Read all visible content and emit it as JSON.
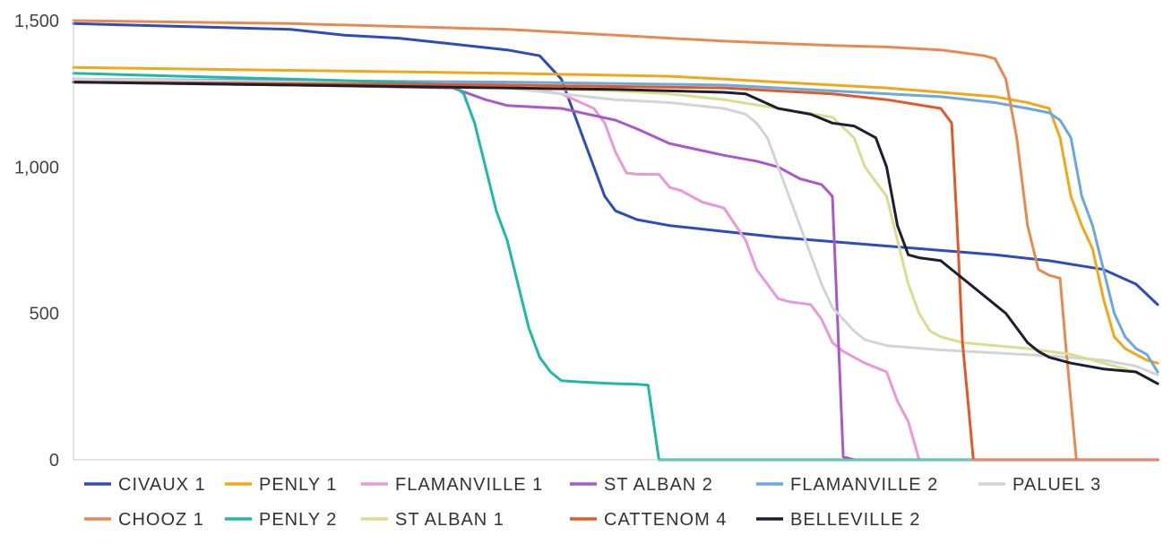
{
  "chart_data": {
    "type": "line",
    "title": "",
    "xlabel": "",
    "ylabel": "",
    "ylim": [
      0,
      1500
    ],
    "xlim": [
      0,
      100
    ],
    "y_ticks": [
      0,
      500,
      1000,
      1500
    ],
    "y_tick_labels": [
      "0",
      "500",
      "1,000",
      "1,500"
    ],
    "grid": false,
    "legend_position": "bottom",
    "series": [
      {
        "name": "CIVAUX 1",
        "color": "#2E4DB8",
        "x": [
          0,
          10,
          20,
          25,
          30,
          35,
          40,
          43,
          45,
          46,
          47,
          48,
          49,
          50,
          52,
          55,
          60,
          65,
          70,
          75,
          80,
          85,
          90,
          95,
          98,
          100
        ],
        "y": [
          1490,
          1480,
          1470,
          1450,
          1440,
          1420,
          1400,
          1380,
          1300,
          1200,
          1100,
          1000,
          900,
          850,
          820,
          800,
          780,
          760,
          745,
          730,
          715,
          700,
          680,
          650,
          600,
          530
        ]
      },
      {
        "name": "PENLY 1",
        "color": "#F0A818",
        "x": [
          0,
          20,
          40,
          55,
          60,
          65,
          70,
          75,
          80,
          85,
          88,
          90,
          91,
          92,
          93,
          94,
          95,
          96,
          97,
          98,
          99,
          100
        ],
        "y": [
          1340,
          1330,
          1320,
          1310,
          1300,
          1290,
          1280,
          1270,
          1255,
          1240,
          1220,
          1200,
          1100,
          900,
          800,
          720,
          550,
          420,
          380,
          360,
          340,
          330
        ]
      },
      {
        "name": "FLAMANVILLE 1",
        "color": "#E89AD8",
        "x": [
          0,
          30,
          40,
          45,
          48,
          49,
          50,
          51,
          52,
          54,
          55,
          56,
          58,
          60,
          62,
          63,
          64,
          65,
          66,
          67,
          68,
          69,
          70,
          71,
          72,
          73,
          75,
          76,
          77,
          78
        ],
        "y": [
          1300,
          1290,
          1280,
          1250,
          1200,
          1150,
          1050,
          980,
          975,
          975,
          930,
          920,
          880,
          860,
          750,
          650,
          600,
          550,
          540,
          535,
          530,
          480,
          400,
          370,
          350,
          330,
          300,
          200,
          130,
          0
        ]
      },
      {
        "name": "ST ALBAN 2",
        "color": "#A85AC8",
        "x": [
          0,
          20,
          35,
          38,
          40,
          45,
          50,
          52,
          55,
          60,
          63,
          65,
          66,
          67,
          68,
          69,
          70,
          71,
          72,
          73,
          74,
          75,
          78,
          80,
          100
        ],
        "y": [
          1290,
          1280,
          1270,
          1230,
          1210,
          1200,
          1160,
          1130,
          1080,
          1040,
          1020,
          1000,
          980,
          960,
          950,
          940,
          900,
          10,
          0,
          0,
          0,
          0,
          0,
          0,
          0
        ]
      },
      {
        "name": "FLAMANVILLE 2",
        "color": "#6AA8E0",
        "x": [
          0,
          20,
          40,
          60,
          70,
          80,
          85,
          88,
          90,
          91,
          92,
          93,
          94,
          95,
          96,
          97,
          98,
          99,
          100
        ],
        "y": [
          1300,
          1295,
          1290,
          1280,
          1260,
          1240,
          1220,
          1200,
          1185,
          1160,
          1100,
          900,
          800,
          650,
          500,
          420,
          380,
          360,
          300
        ]
      },
      {
        "name": "PALUEL 3",
        "color": "#D4D4D8",
        "x": [
          0,
          20,
          35,
          40,
          45,
          50,
          55,
          60,
          62,
          63,
          64,
          65,
          66,
          67,
          68,
          69,
          70,
          71,
          72,
          73,
          75,
          80,
          85,
          90,
          95,
          98,
          100
        ],
        "y": [
          1300,
          1290,
          1280,
          1270,
          1250,
          1230,
          1220,
          1200,
          1180,
          1150,
          1100,
          1000,
          900,
          800,
          700,
          600,
          520,
          480,
          440,
          410,
          390,
          375,
          365,
          355,
          340,
          320,
          290
        ]
      },
      {
        "name": "CHOOZ 1",
        "color": "#E88A50",
        "x": [
          0,
          10,
          20,
          30,
          40,
          50,
          60,
          70,
          75,
          80,
          82,
          84,
          85,
          86,
          87,
          88,
          89,
          90,
          91,
          91.5,
          92,
          92.5,
          93,
          95,
          100
        ],
        "y": [
          1500,
          1495,
          1490,
          1480,
          1470,
          1450,
          1430,
          1415,
          1410,
          1400,
          1390,
          1380,
          1370,
          1300,
          1100,
          800,
          650,
          630,
          620,
          400,
          200,
          0,
          0,
          0,
          0
        ]
      },
      {
        "name": "PENLY 2",
        "color": "#20B8A8",
        "x": [
          0,
          10,
          20,
          30,
          35,
          36,
          37,
          38,
          39,
          40,
          41,
          42,
          43,
          44,
          45,
          47,
          50,
          52,
          53,
          54,
          55,
          60,
          100
        ],
        "y": [
          1320,
          1310,
          1300,
          1290,
          1280,
          1250,
          1150,
          1000,
          850,
          750,
          600,
          450,
          350,
          300,
          270,
          265,
          260,
          258,
          255,
          0,
          0,
          0,
          0
        ]
      },
      {
        "name": "ST ALBAN 1",
        "color": "#DCDC90",
        "x": [
          0,
          20,
          40,
          50,
          55,
          60,
          65,
          70,
          72,
          73,
          74,
          75,
          76,
          77,
          78,
          79,
          80,
          82,
          85,
          88,
          90,
          92,
          95,
          98,
          100
        ],
        "y": [
          1290,
          1280,
          1270,
          1260,
          1250,
          1230,
          1200,
          1170,
          1100,
          1000,
          950,
          900,
          750,
          600,
          500,
          440,
          420,
          400,
          390,
          380,
          370,
          360,
          330,
          300,
          260
        ]
      },
      {
        "name": "CATTENOM 4",
        "color": "#E05A28",
        "x": [
          0,
          20,
          40,
          60,
          70,
          75,
          80,
          81,
          81.5,
          82,
          82.5,
          83,
          85,
          90,
          95,
          100
        ],
        "y": [
          1290,
          1285,
          1280,
          1270,
          1250,
          1230,
          1200,
          1150,
          800,
          400,
          200,
          0,
          0,
          0,
          0,
          0
        ]
      },
      {
        "name": "BELLEVILLE 2",
        "color": "#1A2030",
        "x": [
          0,
          20,
          40,
          50,
          55,
          60,
          62,
          65,
          68,
          70,
          72,
          74,
          75,
          76,
          77,
          78,
          80,
          82,
          84,
          86,
          88,
          89,
          90,
          92,
          95,
          98,
          100
        ],
        "y": [
          1290,
          1280,
          1270,
          1265,
          1260,
          1255,
          1250,
          1200,
          1180,
          1150,
          1140,
          1100,
          1000,
          800,
          700,
          690,
          680,
          620,
          560,
          500,
          400,
          370,
          350,
          330,
          310,
          300,
          260
        ]
      }
    ]
  }
}
